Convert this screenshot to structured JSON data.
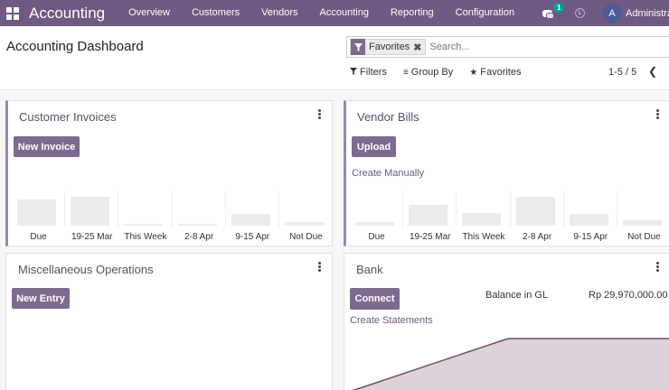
{
  "navbar": {
    "app_name": "Accounting",
    "menu": [
      "Overview",
      "Customers",
      "Vendors",
      "Accounting",
      "Reporting",
      "Configuration"
    ],
    "message_count": "1",
    "avatar_initial": "A",
    "user_name": "Administrator",
    "icons": [
      "apps-grid-icon",
      "chat-icon",
      "clock-icon"
    ]
  },
  "control_panel": {
    "title": "Accounting Dashboard",
    "search": {
      "facet_label": "Favorites",
      "facet_icon": "filter-icon",
      "placeholder": "Search..."
    },
    "filters": [
      "Filters",
      "Group By",
      "Favorites"
    ],
    "pager": "1-5 / 5"
  },
  "cards": {
    "customer_invoices": {
      "title": "Customer Invoices",
      "button": "New Invoice",
      "chart_data": {
        "type": "bar",
        "categories": [
          "Due",
          "19-25 Mar",
          "This Week",
          "2-8 Apr",
          "9-15 Apr",
          "Not Due"
        ],
        "values": [
          28,
          31,
          2,
          2,
          12,
          4
        ]
      }
    },
    "vendor_bills": {
      "title": "Vendor Bills",
      "button": "Upload",
      "link": "Create Manually",
      "chart_data": {
        "type": "bar",
        "categories": [
          "Due",
          "19-25 Mar",
          "This Week",
          "2-8 Apr",
          "9-15 Apr",
          "Not Due"
        ],
        "values": [
          4,
          26,
          16,
          36,
          14,
          7
        ]
      }
    },
    "misc_operations": {
      "title": "Miscellaneous Operations",
      "button": "New Entry"
    },
    "bank": {
      "title": "Bank",
      "button": "Connect",
      "link": "Create Statements",
      "balance_label": "Balance in GL",
      "balance_value": "Rp 29,970,000.00"
    }
  },
  "colors": {
    "navbar": "#6e5a82",
    "primary_button": "#7c6a8f",
    "accent": "#9b86b6",
    "bar": "#ebebeb",
    "bank_area": "#dcd2da",
    "bank_line": "#7a4a6a"
  }
}
